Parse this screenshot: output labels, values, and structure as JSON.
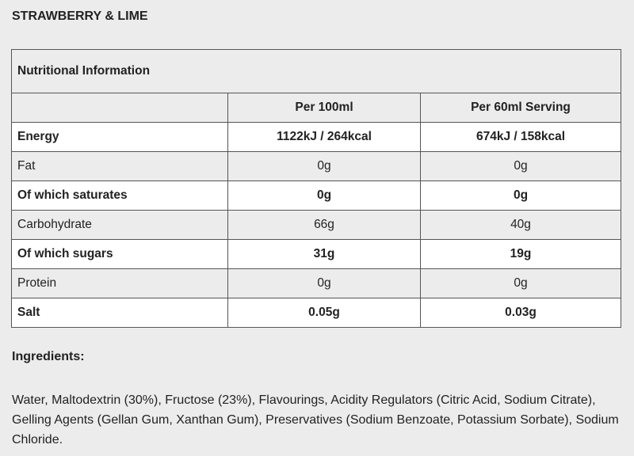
{
  "header": {
    "title": "STRAWBERRY & LIME"
  },
  "table": {
    "title": "Nutritional Information",
    "columns": [
      "",
      "Per 100ml",
      "Per 60ml Serving"
    ],
    "rows": [
      [
        "Energy",
        "1122kJ / 264kcal",
        "674kJ / 158kcal"
      ],
      [
        "Fat",
        "0g",
        "0g"
      ],
      [
        "Of which saturates",
        "0g",
        "0g"
      ],
      [
        "Carbohydrate",
        "66g",
        "40g"
      ],
      [
        "Of which sugars",
        "31g",
        "19g"
      ],
      [
        "Protein",
        "0g",
        "0g"
      ],
      [
        "Salt",
        "0.05g",
        "0.03g"
      ]
    ]
  },
  "ingredients": {
    "heading": "Ingredients:",
    "text": "Water, Maltodextrin (30%), Fructose (23%), Flavourings, Acidity Regulators (Citric Acid, Sodium Citrate), Gelling Agents (Gellan Gum, Xanthan Gum), Preservatives (Sodium Benzoate, Potassium Sorbate), Sodium Chloride."
  }
}
